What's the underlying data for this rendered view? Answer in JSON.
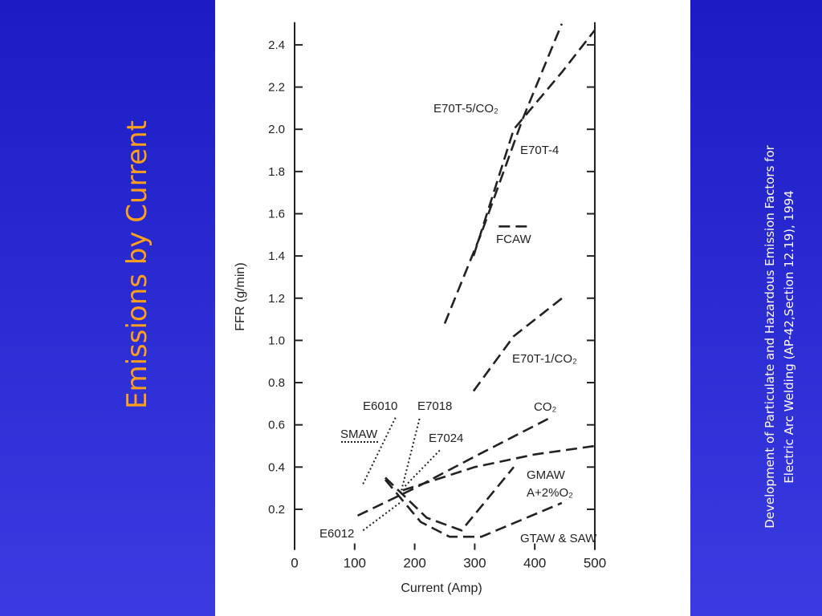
{
  "title": "Emissions by Current",
  "citation": [
    "Development of Particulate and Hazardous Emission Factors for",
    "Electric Arc Welding (AP-42,Section 12.19), 1994"
  ],
  "chart_data": {
    "type": "line",
    "x_label": "Current (Amp)",
    "y_label": "FFR (g/min)",
    "xlim": [
      0,
      500
    ],
    "ylim": [
      0,
      2.5
    ],
    "xticks": [
      0,
      100,
      200,
      300,
      400,
      500
    ],
    "yticks": [
      0.2,
      0.4,
      0.6,
      0.8,
      {
        "value": 1,
        "label": "1.0"
      },
      1.2,
      1.4,
      1.6,
      1.8,
      {
        "value": 2,
        "label": "2.0"
      },
      2.2,
      2.4
    ],
    "color": "#222222",
    "annotations": [
      "SMAW"
    ],
    "series": [
      {
        "name": "E70T-5/CO₂",
        "style": "dash",
        "x": [
          250,
          310,
          380,
          445
        ],
        "values": [
          1.08,
          1.5,
          2.05,
          2.5
        ]
      },
      {
        "name": "E70T-4",
        "style": "dash",
        "x": [
          298,
          365,
          445,
          500
        ],
        "values": [
          1.4,
          2.0,
          2.27,
          2.47
        ]
      },
      {
        "name": "FCAW",
        "style": "dash",
        "x": [
          340,
          392
        ],
        "values": [
          1.54,
          1.54
        ]
      },
      {
        "name": "E70T-1/CO₂",
        "style": "dash",
        "x": [
          298,
          365,
          450
        ],
        "values": [
          0.76,
          1.02,
          1.21
        ]
      },
      {
        "name": "CO₂",
        "style": "dash",
        "x": [
          105,
          200,
          300,
          430
        ],
        "values": [
          0.17,
          0.3,
          0.45,
          0.64
        ]
      },
      {
        "name": "GMAW",
        "style": "dash",
        "x": [
          180,
          300,
          400,
          500
        ],
        "values": [
          0.29,
          0.4,
          0.46,
          0.5
        ]
      },
      {
        "name": "A+2%O₂",
        "style": "dash",
        "x": [
          151,
          220,
          278,
          365
        ],
        "values": [
          0.35,
          0.16,
          0.1,
          0.4
        ]
      },
      {
        "name": "GTAW & SAW",
        "style": "dash",
        "x": [
          151,
          210,
          258,
          311,
          445
        ],
        "values": [
          0.34,
          0.14,
          0.07,
          0.07,
          0.23
        ]
      },
      {
        "name": "E6010",
        "style": "dot",
        "x": [
          114,
          169
        ],
        "values": [
          0.32,
          0.64
        ]
      },
      {
        "name": "E7018",
        "style": "dot",
        "x": [
          178,
          209
        ],
        "values": [
          0.29,
          0.64
        ]
      },
      {
        "name": "E7024",
        "style": "dot",
        "x": [
          184,
          242
        ],
        "values": [
          0.31,
          0.48
        ]
      },
      {
        "name": "E6012",
        "style": "dot",
        "x": [
          114,
          175
        ],
        "values": [
          0.1,
          0.23
        ]
      }
    ]
  }
}
